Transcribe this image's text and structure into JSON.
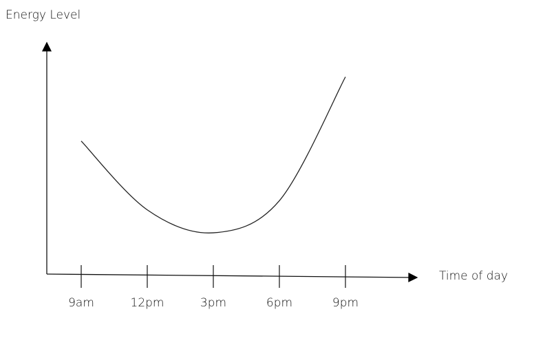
{
  "chart_data": {
    "type": "line",
    "ylabel": "Energy Level",
    "xlabel": "Time of day",
    "categories": [
      "9am",
      "12pm",
      "3pm",
      "6pm",
      "9pm"
    ],
    "values": [
      58,
      28,
      18,
      32,
      86
    ],
    "color": "#222222",
    "ylim": [
      0,
      100
    ]
  }
}
